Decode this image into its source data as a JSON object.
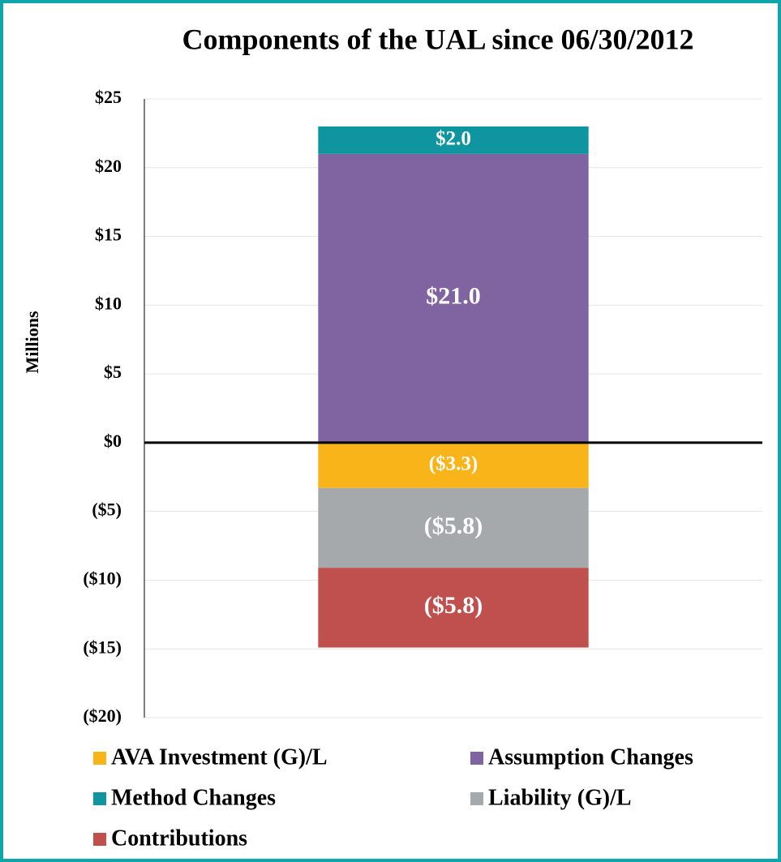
{
  "chart_data": {
    "type": "stacked_bar",
    "title": "Components of the UAL since 06/30/2012",
    "ylabel": "Millions",
    "categories": [
      null
    ],
    "series": [
      {
        "name": "AVA Investment (G)/L",
        "color": "#f8b418",
        "values": [
          -3.3
        ],
        "value_labels": [
          "($3.3)"
        ]
      },
      {
        "name": "Assumption Changes",
        "color": "#8064a2",
        "values": [
          21.0
        ],
        "value_labels": [
          "$21.0"
        ]
      },
      {
        "name": "Method Changes",
        "color": "#0e959f",
        "values": [
          2.0
        ],
        "value_labels": [
          "$2.0"
        ]
      },
      {
        "name": "Liability (G)/L",
        "color": "#a5a9ac",
        "values": [
          -5.8
        ],
        "value_labels": [
          "($5.8)"
        ]
      },
      {
        "name": "Contributions",
        "color": "#c0504d",
        "values": [
          -5.8
        ],
        "value_labels": [
          "($5.8)"
        ]
      }
    ],
    "ylim": [
      -20,
      25
    ],
    "yticks": [
      {
        "value": 25,
        "label": "$25"
      },
      {
        "value": 20,
        "label": "$20"
      },
      {
        "value": 15,
        "label": "$15"
      },
      {
        "value": 10,
        "label": "$10"
      },
      {
        "value": 5,
        "label": "$5"
      },
      {
        "value": 0,
        "label": "$0"
      },
      {
        "value": -5,
        "label": "($5)"
      },
      {
        "value": -10,
        "label": "($10)"
      },
      {
        "value": -15,
        "label": "($15)"
      },
      {
        "value": -20,
        "label": "($20)"
      }
    ],
    "grid": true
  }
}
